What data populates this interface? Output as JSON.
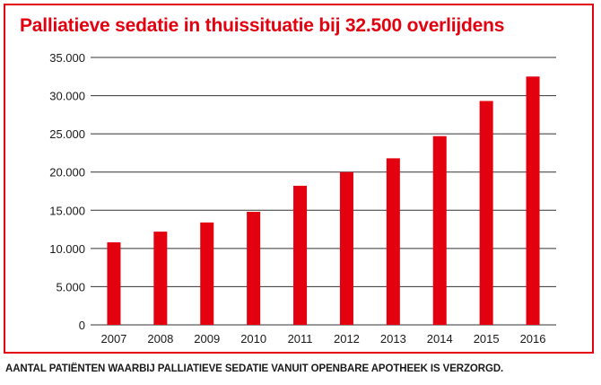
{
  "title": "Palliatieve sedatie in thuissituatie bij 32.500 overlijdens",
  "caption": "AANTAL PATIËNTEN WAARBIJ PALLIATIEVE SEDATIE VANUIT OPENBARE APOTHEEK IS VERZORGD.",
  "colors": {
    "accent": "#e3000f",
    "text": "#1a1a1a",
    "grid": "#333333"
  },
  "chart_data": {
    "type": "bar",
    "categories": [
      "2007",
      "2008",
      "2009",
      "2010",
      "2011",
      "2012",
      "2013",
      "2014",
      "2015",
      "2016"
    ],
    "values": [
      10800,
      12200,
      13400,
      14800,
      18200,
      20000,
      21800,
      24700,
      29300,
      32500
    ],
    "yticks": [
      "0",
      "5.000",
      "10.000",
      "15.000",
      "20.000",
      "25.000",
      "30.000",
      "35.000"
    ],
    "ylim": [
      0,
      35000
    ],
    "grid": true,
    "xlabel": "",
    "ylabel": ""
  }
}
